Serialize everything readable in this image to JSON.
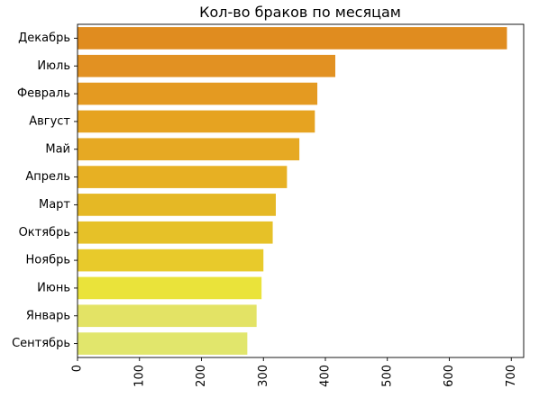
{
  "chart_data": {
    "type": "bar",
    "orientation": "horizontal",
    "title": "Кол-во браков по месяцам",
    "xlabel": "",
    "ylabel": "",
    "categories": [
      "Декабрь",
      "Июль",
      "Февраль",
      "Август",
      "Май",
      "Апрель",
      "Март",
      "Октябрь",
      "Ноябрь",
      "Июнь",
      "Январь",
      "Сентябрь"
    ],
    "values": [
      693,
      416,
      387,
      383,
      358,
      338,
      320,
      315,
      300,
      297,
      289,
      274
    ],
    "colors": [
      "#e08c1f",
      "#e29122",
      "#e49a21",
      "#e6a321",
      "#e6a923",
      "#e7b023",
      "#e5b825",
      "#e6c128",
      "#e8ca2b",
      "#eae33a",
      "#e3e365",
      "#e1e66c"
    ],
    "xlim": [
      0,
      720
    ],
    "xticks": [
      0,
      100,
      200,
      300,
      400,
      500,
      600,
      700
    ],
    "grid": false,
    "legend": "none"
  }
}
